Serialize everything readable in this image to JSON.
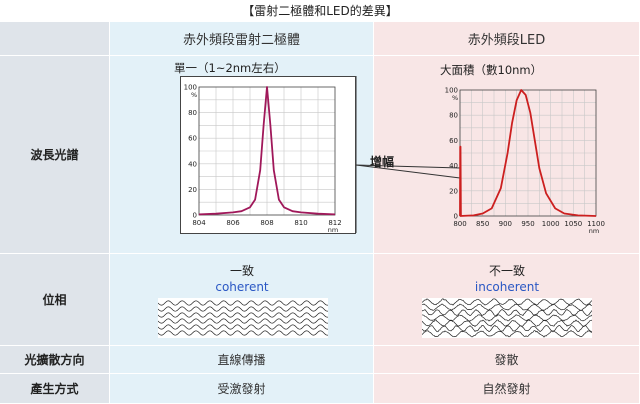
{
  "title": "【雷射二極體和LED的差異】",
  "columns": {
    "laser": "赤外頻段雷射二極體",
    "led": "赤外頻段LED"
  },
  "rows": {
    "spectrum": "波長光譜",
    "phase": "位相",
    "direction": "光擴散方向",
    "generation": "產生方式"
  },
  "spectrum": {
    "laser_label": "單一（1~2nm左右）",
    "led_label": "大面積（數10nm）",
    "zoom_label": "增幅"
  },
  "phase": {
    "laser_top": "一致",
    "laser_sub": "coherent",
    "led_top": "不一致",
    "led_sub": "incoherent"
  },
  "direction": {
    "laser": "直線傳播",
    "led": "發散"
  },
  "generation": {
    "laser": "受激發射",
    "led": "自然發射"
  },
  "chart_data": [
    {
      "type": "line",
      "x_ticks": [
        "804",
        "806",
        "808",
        "810",
        "812"
      ],
      "x_unit": "nm",
      "y_ticks": [
        "0",
        "20",
        "40",
        "60",
        "80",
        "100"
      ],
      "y_unit": "%",
      "xlim": [
        804,
        812
      ],
      "ylim": [
        0,
        100
      ],
      "grid": true,
      "color": "#a0185a",
      "series": [
        {
          "x": [
            804,
            805,
            806,
            806.5,
            807,
            807.3,
            807.6,
            807.8,
            808,
            808.2,
            808.4,
            808.7,
            809,
            809.5,
            810,
            811,
            812
          ],
          "y": [
            0.5,
            1,
            2,
            3,
            6,
            12,
            35,
            70,
            100,
            70,
            35,
            12,
            6,
            3,
            2,
            1,
            0.5
          ]
        }
      ]
    },
    {
      "type": "line",
      "x_ticks": [
        "800",
        "850",
        "900",
        "950",
        "1000",
        "1050",
        "1100"
      ],
      "x_unit": "nm",
      "y_ticks": [
        "0",
        "20",
        "40",
        "60",
        "80",
        "100"
      ],
      "y_unit": "%",
      "xlim": [
        800,
        1100
      ],
      "ylim": [
        0,
        100
      ],
      "grid": true,
      "color": "#cc1f1f",
      "series": [
        {
          "x": [
            800,
            830,
            850,
            870,
            890,
            905,
            915,
            925,
            935,
            945,
            955,
            965,
            975,
            990,
            1010,
            1030,
            1060,
            1100
          ],
          "y": [
            0,
            0.5,
            2,
            6,
            22,
            50,
            74,
            92,
            100,
            96,
            82,
            60,
            38,
            18,
            6,
            2,
            0.5,
            0
          ]
        },
        {
          "x": [
            800,
            800.5,
            801,
            802
          ],
          "y": [
            0,
            55,
            55,
            0
          ]
        }
      ]
    }
  ]
}
